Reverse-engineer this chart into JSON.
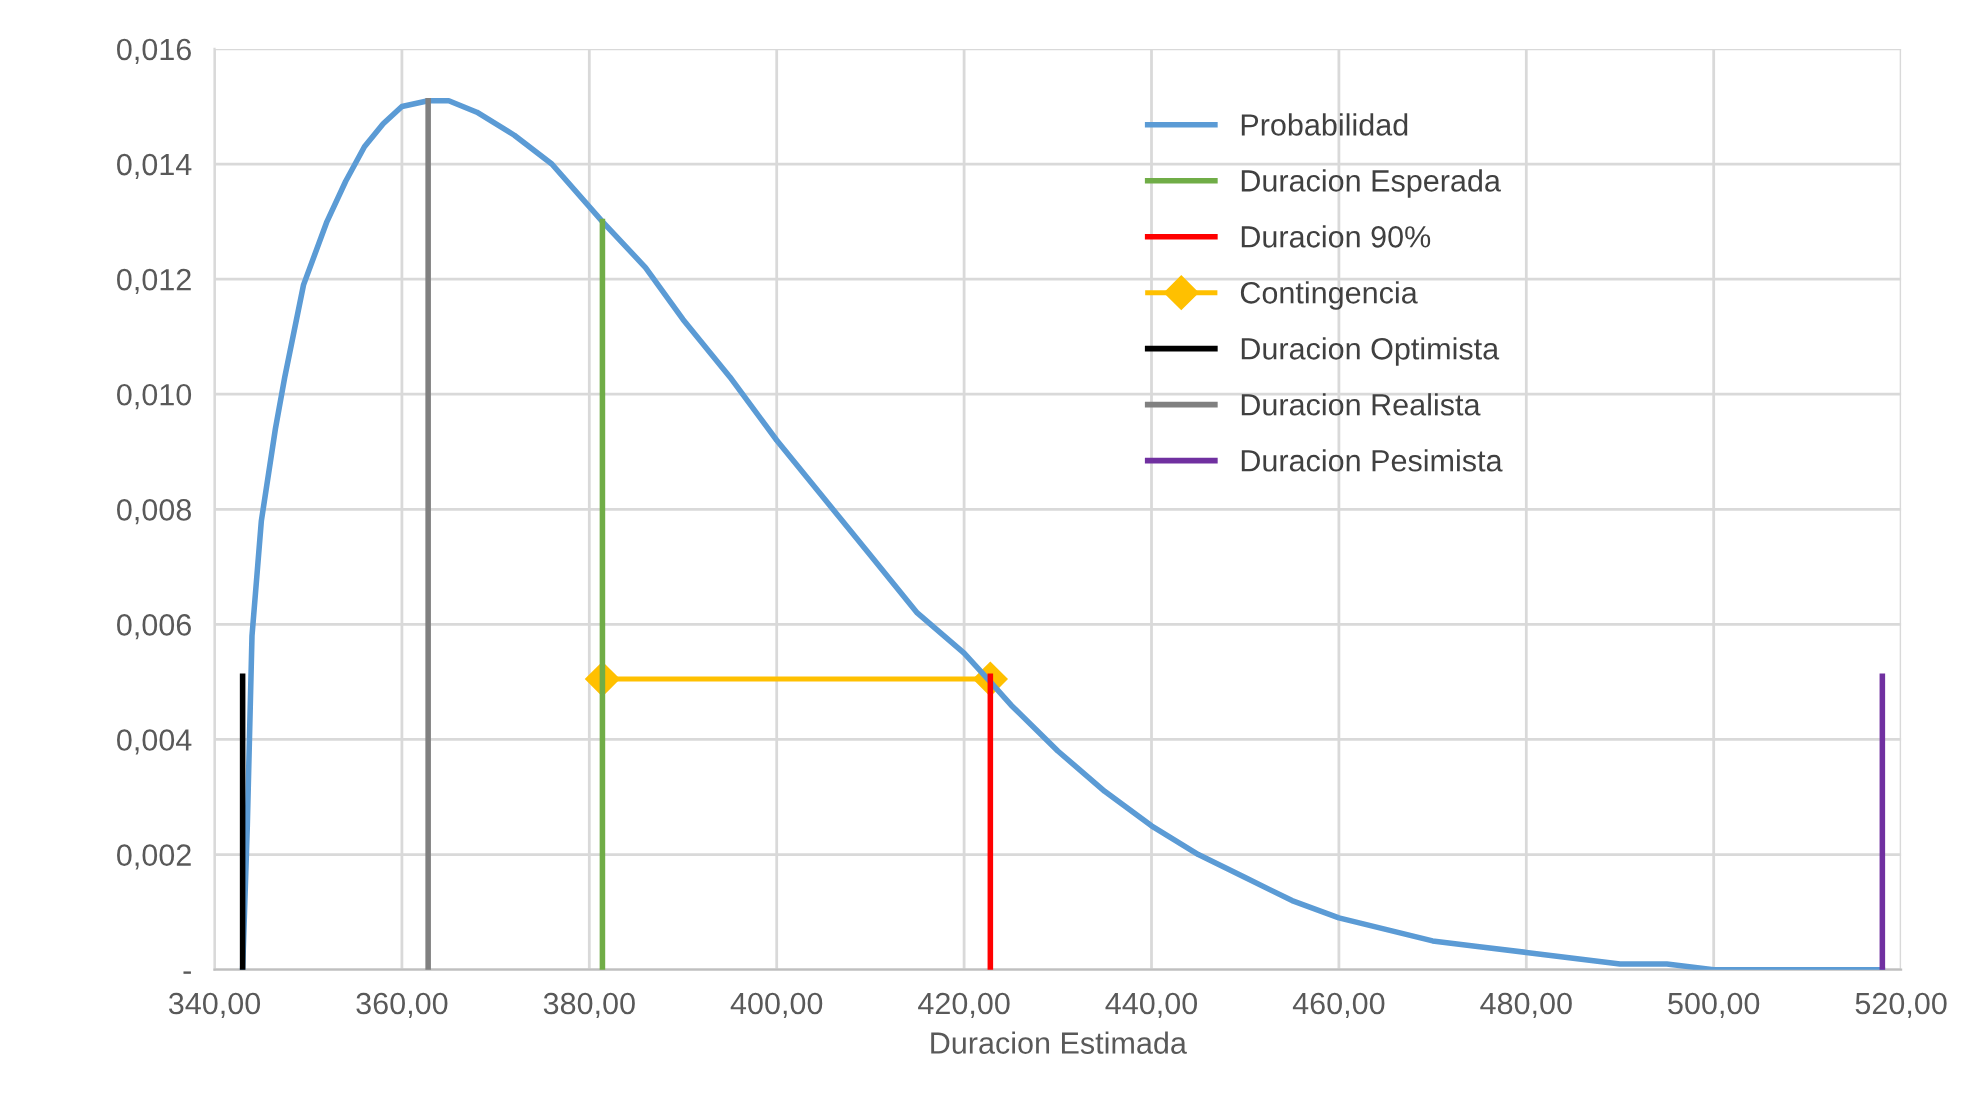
{
  "chart_data": {
    "type": "line",
    "xlabel": "Duracion Estimada",
    "xlim": [
      340,
      520
    ],
    "xticks": [
      {
        "value": 340,
        "label": "340,00"
      },
      {
        "value": 360,
        "label": "360,00"
      },
      {
        "value": 380,
        "label": "380,00"
      },
      {
        "value": 400,
        "label": "400,00"
      },
      {
        "value": 420,
        "label": "420,00"
      },
      {
        "value": 440,
        "label": "440,00"
      },
      {
        "value": 460,
        "label": "460,00"
      },
      {
        "value": 480,
        "label": "480,00"
      },
      {
        "value": 500,
        "label": "500,00"
      },
      {
        "value": 520,
        "label": "520,00"
      }
    ],
    "ylim": [
      0,
      0.016
    ],
    "yticks": [
      {
        "value": 0,
        "label": "-"
      },
      {
        "value": 0.002,
        "label": "0,002"
      },
      {
        "value": 0.004,
        "label": "0,004"
      },
      {
        "value": 0.006,
        "label": "0,006"
      },
      {
        "value": 0.008,
        "label": "0,008"
      },
      {
        "value": 0.01,
        "label": "0,010"
      },
      {
        "value": 0.012,
        "label": "0,012"
      },
      {
        "value": 0.014,
        "label": "0,014"
      },
      {
        "value": 0.016,
        "label": "0,016"
      }
    ],
    "grid": true,
    "legend": "top right",
    "marker": "none",
    "line_style": "solid",
    "series": [
      {
        "name": "Probabilidad",
        "color": "#5b9bd5",
        "x": [
          343,
          343.5,
          344,
          345,
          346.5,
          347.5,
          349.5,
          352,
          354,
          356,
          358,
          360,
          362.8,
          365,
          368,
          372,
          376,
          381.4,
          386,
          390,
          395,
          400,
          405,
          410,
          415,
          420,
          422.8,
          425,
          430,
          435,
          440,
          445,
          450,
          455,
          460,
          465,
          470,
          475,
          480,
          485,
          490,
          495,
          500,
          510,
          518
        ],
        "values": [
          0,
          0.0025,
          0.0058,
          0.0078,
          0.0094,
          0.0103,
          0.0119,
          0.013,
          0.0137,
          0.0143,
          0.0147,
          0.015,
          0.0151,
          0.0151,
          0.0149,
          0.0145,
          0.014,
          0.013,
          0.0122,
          0.0113,
          0.0103,
          0.0092,
          0.0082,
          0.0072,
          0.0062,
          0.0055,
          0.005,
          0.0046,
          0.0038,
          0.0031,
          0.0025,
          0.002,
          0.0016,
          0.0012,
          0.0009,
          0.0007,
          0.0005,
          0.0004,
          0.0003,
          0.0002,
          0.0001,
          0.0001,
          0,
          0,
          0
        ]
      },
      {
        "name": "Duracion Esperada",
        "color": "#70ad47",
        "x": [
          381.4,
          381.4
        ],
        "values": [
          0,
          0.013
        ]
      },
      {
        "name": "Duracion 90%",
        "color": "#ff0000",
        "x": [
          422.8,
          422.8
        ],
        "values": [
          0,
          0.0051
        ]
      },
      {
        "name": "Contingencia",
        "color": "#ffc000",
        "marker": "diamond",
        "x": [
          381.4,
          422.8
        ],
        "values": [
          0.00505,
          0.00505
        ]
      },
      {
        "name": "Duracion Optimista",
        "color": "#000000",
        "x": [
          343,
          343
        ],
        "values": [
          0,
          0.0051
        ]
      },
      {
        "name": "Duracion Realista",
        "color": "#808080",
        "x": [
          362.8,
          362.8
        ],
        "values": [
          0,
          0.0151
        ]
      },
      {
        "name": "Duracion Pesimista",
        "color": "#7030a0",
        "x": [
          518,
          518
        ],
        "values": [
          0,
          0.0051
        ]
      }
    ]
  }
}
